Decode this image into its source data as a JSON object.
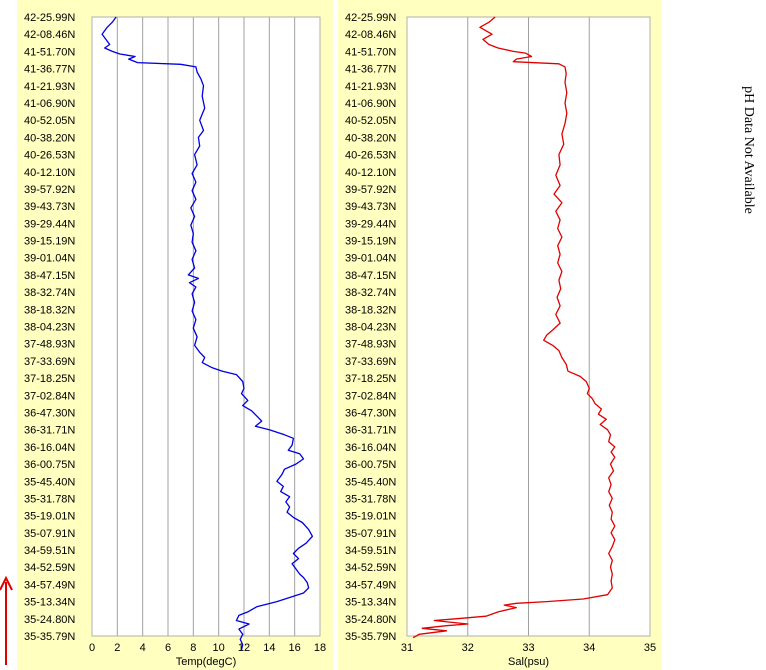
{
  "labels": [
    "42-25.99N",
    "42-08.46N",
    "41-51.70N",
    "41-36.77N",
    "41-21.93N",
    "41-06.90N",
    "40-52.05N",
    "40-38.20N",
    "40-26.53N",
    "40-12.10N",
    "39-57.92N",
    "39-43.73N",
    "39-29.44N",
    "39-15.19N",
    "39-01.04N",
    "38-47.15N",
    "38-32.74N",
    "38-18.32N",
    "38-04.23N",
    "37-48.93N",
    "37-33.69N",
    "37-18.25N",
    "37-02.84N",
    "36-47.30N",
    "36-31.71N",
    "36-16.04N",
    "36-00.75N",
    "35-45.40N",
    "35-31.78N",
    "35-19.01N",
    "35-07.91N",
    "34-59.51N",
    "34-52.59N",
    "34-57.49N",
    "35-13.34N",
    "35-24.80N",
    "35-35.79N"
  ],
  "side_note": "pH Data Not Available",
  "colors": {
    "temp": "#0000e0",
    "sal": "#e00000",
    "arrow": "#e00000",
    "panel": "#ffffc0",
    "grid": "#a0a0a0"
  },
  "chart_data": [
    {
      "type": "line",
      "xlabel": "Temp(degC)",
      "xlim": [
        0,
        18
      ],
      "xticks": [
        0,
        2,
        4,
        6,
        8,
        10,
        12,
        14,
        16,
        18
      ],
      "grid": true,
      "color": "#0000e0",
      "points": [
        [
          1.9,
          0
        ],
        [
          1.6,
          0.3
        ],
        [
          1.2,
          0.6
        ],
        [
          0.8,
          1.0
        ],
        [
          1.1,
          1.3
        ],
        [
          1.4,
          1.6
        ],
        [
          1.0,
          1.8
        ],
        [
          1.6,
          2.0
        ],
        [
          2.2,
          2.15
        ],
        [
          3.4,
          2.3
        ],
        [
          2.9,
          2.45
        ],
        [
          3.6,
          2.65
        ],
        [
          7.0,
          2.75
        ],
        [
          8.2,
          2.9
        ],
        [
          8.3,
          3.2
        ],
        [
          8.6,
          3.6
        ],
        [
          8.8,
          4.0
        ],
        [
          8.7,
          4.6
        ],
        [
          8.9,
          5.3
        ],
        [
          8.5,
          6.0
        ],
        [
          8.8,
          6.6
        ],
        [
          8.4,
          7.0
        ],
        [
          8.5,
          7.5
        ],
        [
          8.1,
          8.0
        ],
        [
          8.3,
          8.6
        ],
        [
          7.9,
          9.1
        ],
        [
          8.2,
          9.6
        ],
        [
          7.9,
          10.1
        ],
        [
          8.2,
          10.6
        ],
        [
          7.8,
          11.1
        ],
        [
          8.1,
          11.6
        ],
        [
          7.8,
          12.1
        ],
        [
          8.0,
          12.6
        ],
        [
          7.9,
          13.1
        ],
        [
          8.2,
          13.6
        ],
        [
          7.9,
          14.1
        ],
        [
          8.1,
          14.6
        ],
        [
          7.6,
          15.0
        ],
        [
          8.4,
          15.2
        ],
        [
          7.7,
          15.45
        ],
        [
          8.2,
          15.7
        ],
        [
          7.9,
          16.1
        ],
        [
          8.1,
          16.6
        ],
        [
          7.9,
          17.1
        ],
        [
          8.2,
          17.6
        ],
        [
          8.0,
          18.1
        ],
        [
          8.3,
          18.6
        ],
        [
          8.1,
          19.1
        ],
        [
          8.5,
          19.5
        ],
        [
          8.9,
          19.8
        ],
        [
          8.7,
          20.1
        ],
        [
          9.5,
          20.4
        ],
        [
          10.3,
          20.6
        ],
        [
          11.4,
          20.8
        ],
        [
          11.9,
          21.2
        ],
        [
          12.0,
          21.6
        ],
        [
          11.8,
          21.9
        ],
        [
          12.3,
          22.3
        ],
        [
          11.9,
          22.6
        ],
        [
          12.6,
          22.9
        ],
        [
          13.0,
          23.2
        ],
        [
          13.4,
          23.5
        ],
        [
          12.9,
          23.8
        ],
        [
          14.0,
          24.0
        ],
        [
          15.2,
          24.3
        ],
        [
          15.9,
          24.5
        ],
        [
          15.8,
          24.9
        ],
        [
          15.5,
          25.2
        ],
        [
          16.4,
          25.4
        ],
        [
          16.7,
          25.7
        ],
        [
          16.1,
          26.0
        ],
        [
          15.2,
          26.3
        ],
        [
          15.0,
          26.6
        ],
        [
          14.6,
          27.0
        ],
        [
          15.1,
          27.3
        ],
        [
          14.9,
          27.6
        ],
        [
          15.6,
          27.9
        ],
        [
          15.3,
          28.2
        ],
        [
          15.6,
          28.5
        ],
        [
          15.4,
          28.8
        ],
        [
          15.9,
          29.1
        ],
        [
          16.6,
          29.4
        ],
        [
          17.1,
          29.8
        ],
        [
          17.4,
          30.2
        ],
        [
          16.9,
          30.6
        ],
        [
          16.3,
          30.9
        ],
        [
          15.9,
          31.2
        ],
        [
          16.3,
          31.5
        ],
        [
          15.8,
          31.8
        ],
        [
          16.1,
          32.1
        ],
        [
          16.4,
          32.4
        ],
        [
          16.7,
          32.6
        ],
        [
          17.0,
          32.9
        ],
        [
          17.1,
          33.2
        ],
        [
          16.7,
          33.5
        ],
        [
          14.6,
          34.0
        ],
        [
          13.0,
          34.3
        ],
        [
          12.3,
          34.6
        ],
        [
          11.6,
          34.8
        ],
        [
          11.4,
          35.1
        ],
        [
          12.4,
          35.3
        ],
        [
          11.6,
          35.6
        ],
        [
          11.9,
          35.9
        ],
        [
          11.7,
          36.2
        ],
        [
          11.9,
          36.5
        ],
        [
          11.8,
          36.8
        ]
      ]
    },
    {
      "type": "line",
      "xlabel": "Sal(psu)",
      "xlim": [
        31,
        35
      ],
      "xticks": [
        31,
        32,
        33,
        34,
        35
      ],
      "grid": true,
      "color": "#e00000",
      "points": [
        [
          32.45,
          0
        ],
        [
          32.35,
          0.3
        ],
        [
          32.2,
          0.6
        ],
        [
          32.4,
          1.0
        ],
        [
          32.25,
          1.3
        ],
        [
          32.35,
          1.6
        ],
        [
          32.5,
          1.8
        ],
        [
          32.75,
          2.0
        ],
        [
          32.95,
          2.1
        ],
        [
          33.05,
          2.3
        ],
        [
          32.8,
          2.45
        ],
        [
          32.75,
          2.6
        ],
        [
          33.5,
          2.72
        ],
        [
          33.6,
          2.9
        ],
        [
          33.62,
          3.3
        ],
        [
          33.6,
          3.8
        ],
        [
          33.63,
          4.4
        ],
        [
          33.6,
          5.0
        ],
        [
          33.63,
          5.6
        ],
        [
          33.6,
          6.2
        ],
        [
          33.55,
          6.8
        ],
        [
          33.58,
          7.4
        ],
        [
          33.5,
          8.0
        ],
        [
          33.52,
          8.6
        ],
        [
          33.45,
          9.2
        ],
        [
          33.52,
          9.8
        ],
        [
          33.42,
          10.3
        ],
        [
          33.55,
          10.8
        ],
        [
          33.45,
          11.3
        ],
        [
          33.52,
          11.8
        ],
        [
          33.48,
          12.3
        ],
        [
          33.55,
          12.8
        ],
        [
          33.48,
          13.3
        ],
        [
          33.52,
          13.8
        ],
        [
          33.48,
          14.3
        ],
        [
          33.55,
          14.8
        ],
        [
          33.5,
          15.3
        ],
        [
          33.53,
          15.8
        ],
        [
          33.47,
          16.3
        ],
        [
          33.52,
          16.8
        ],
        [
          33.45,
          17.3
        ],
        [
          33.52,
          17.8
        ],
        [
          33.4,
          18.2
        ],
        [
          33.3,
          18.5
        ],
        [
          33.25,
          18.8
        ],
        [
          33.4,
          19.1
        ],
        [
          33.5,
          19.4
        ],
        [
          33.55,
          19.8
        ],
        [
          33.62,
          20.2
        ],
        [
          33.65,
          20.6
        ],
        [
          33.85,
          20.9
        ],
        [
          33.95,
          21.2
        ],
        [
          34.0,
          21.6
        ],
        [
          33.97,
          21.9
        ],
        [
          34.05,
          22.2
        ],
        [
          34.1,
          22.5
        ],
        [
          34.2,
          22.8
        ],
        [
          34.15,
          23.1
        ],
        [
          34.28,
          23.4
        ],
        [
          34.18,
          23.7
        ],
        [
          34.3,
          24.0
        ],
        [
          34.35,
          24.3
        ],
        [
          34.32,
          24.7
        ],
        [
          34.42,
          25.0
        ],
        [
          34.36,
          25.3
        ],
        [
          34.42,
          25.6
        ],
        [
          34.35,
          26.0
        ],
        [
          34.4,
          26.4
        ],
        [
          34.32,
          26.8
        ],
        [
          34.36,
          27.2
        ],
        [
          34.32,
          27.6
        ],
        [
          34.38,
          28.0
        ],
        [
          34.33,
          28.4
        ],
        [
          34.38,
          28.8
        ],
        [
          34.36,
          29.2
        ],
        [
          34.42,
          29.6
        ],
        [
          34.36,
          30.0
        ],
        [
          34.42,
          30.4
        ],
        [
          34.38,
          30.8
        ],
        [
          34.32,
          31.2
        ],
        [
          34.38,
          31.6
        ],
        [
          34.35,
          32.0
        ],
        [
          34.38,
          32.4
        ],
        [
          34.36,
          32.8
        ],
        [
          34.38,
          33.2
        ],
        [
          34.3,
          33.6
        ],
        [
          33.9,
          33.85
        ],
        [
          33.3,
          34.0
        ],
        [
          32.8,
          34.1
        ],
        [
          32.6,
          34.2
        ],
        [
          32.8,
          34.35
        ],
        [
          32.5,
          34.6
        ],
        [
          32.3,
          34.85
        ],
        [
          31.8,
          35.0
        ],
        [
          31.45,
          35.1
        ],
        [
          32.0,
          35.3
        ],
        [
          31.65,
          35.4
        ],
        [
          31.25,
          35.55
        ],
        [
          31.65,
          35.7
        ],
        [
          31.2,
          35.9
        ],
        [
          31.1,
          36.1
        ]
      ]
    }
  ]
}
